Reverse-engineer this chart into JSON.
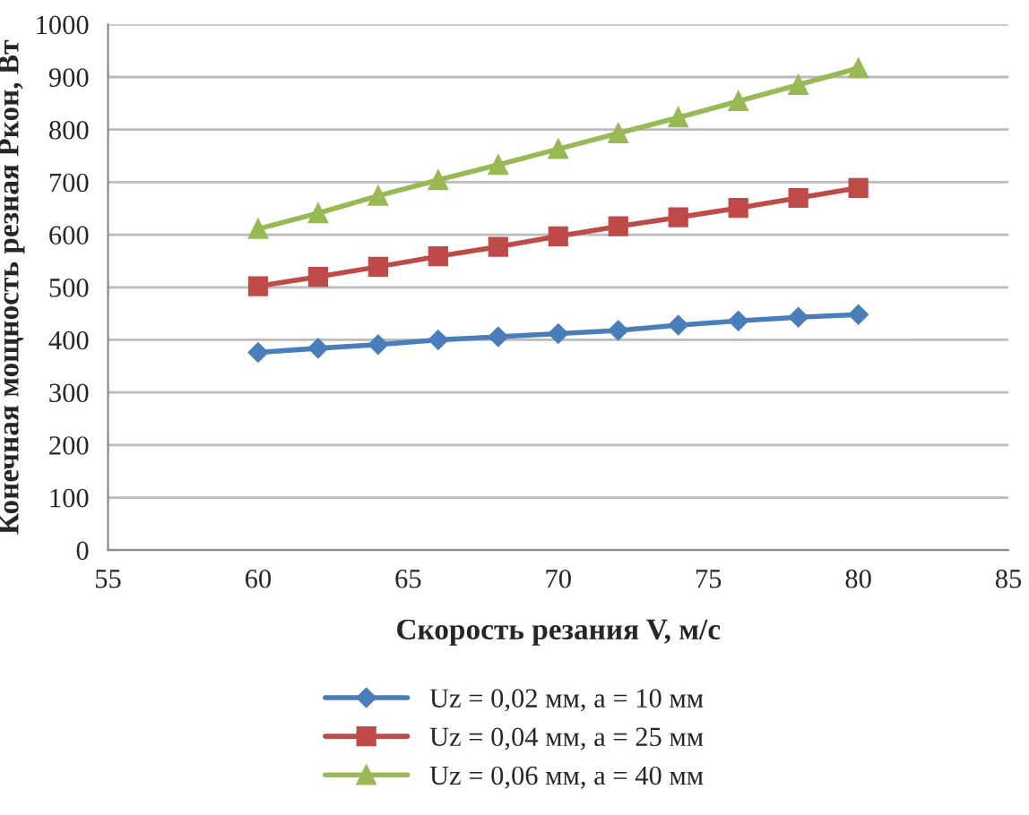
{
  "chart_data": {
    "type": "line",
    "xlabel": "Скорость резания V, м/с",
    "ylabel": "Конечная мощность резная Pкон, Вт",
    "x": [
      60,
      62,
      64,
      66,
      68,
      70,
      72,
      74,
      76,
      78,
      80
    ],
    "series": [
      {
        "name": "Uz = 0,02 мм, a = 10 мм",
        "color": "#4a7ebb",
        "marker": "diamond",
        "values": [
          376,
          384,
          391,
          400,
          406,
          412,
          418,
          428,
          436,
          443,
          448
        ]
      },
      {
        "name": "Uz = 0,04 мм, a = 25 мм",
        "color": "#be4b48",
        "marker": "square",
        "values": [
          502,
          520,
          539,
          559,
          577,
          597,
          616,
          633,
          651,
          670,
          689
        ]
      },
      {
        "name": "Uz = 0,06 мм, a = 40 мм",
        "color": "#98b954",
        "marker": "triangle",
        "values": [
          611,
          641,
          674,
          704,
          733,
          763,
          793,
          823,
          854,
          885,
          917
        ]
      }
    ],
    "xlim": [
      55,
      85
    ],
    "xticks": [
      55,
      60,
      65,
      70,
      75,
      80,
      85
    ],
    "ylim": [
      0,
      1000
    ],
    "yticks": [
      0,
      100,
      200,
      300,
      400,
      500,
      600,
      700,
      800,
      900,
      1000
    ],
    "grid": "y",
    "legend": "bottom",
    "line_style": "solid"
  }
}
